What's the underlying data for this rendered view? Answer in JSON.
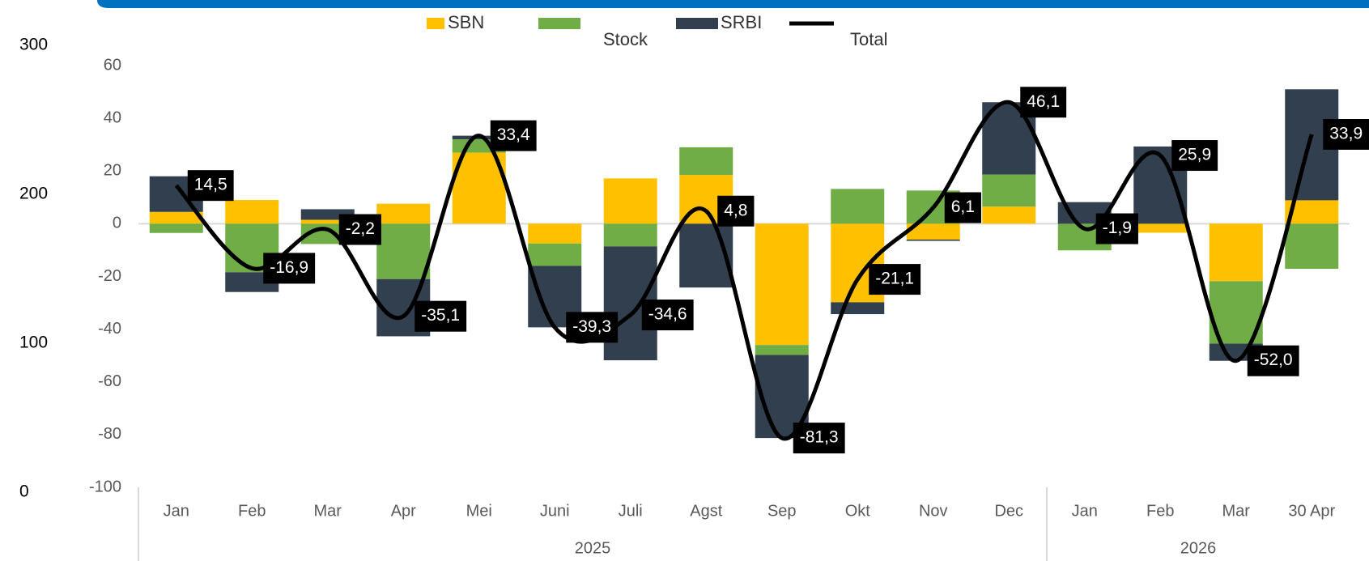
{
  "chart_data": {
    "type": "bar",
    "categories": [
      "Jan",
      "Feb",
      "Mar",
      "Apr",
      "Mei",
      "Juni",
      "Juli",
      "Agst",
      "Sep",
      "Okt",
      "Nov",
      "Dec",
      "Jan",
      "Feb",
      "Mar",
      "30 Apr"
    ],
    "groups": [
      {
        "name": "2025",
        "count": 12
      },
      {
        "name": "2026",
        "count": 4
      }
    ],
    "series": [
      {
        "name": "SBN",
        "type": "bar",
        "color": "#FFC000",
        "values": [
          4.5,
          9,
          1.5,
          7.6,
          27,
          -7.5,
          17.2,
          18.5,
          -46,
          -29.8,
          -6,
          6.5,
          0,
          -3.4,
          -21.8,
          8.9
        ]
      },
      {
        "name": "Stock",
        "type": "bar",
        "color": "#70AD47",
        "values": [
          -3.5,
          -18.4,
          -7.7,
          -21,
          5,
          -8.5,
          -8.6,
          10.5,
          -3.8,
          13.2,
          12.6,
          12.2,
          -10.1,
          0,
          -23.7,
          -17.1
        ]
      },
      {
        "name": "SRBI",
        "type": "bar",
        "color": "#323F4F",
        "values": [
          13.5,
          -7.5,
          4,
          -21.7,
          1.4,
          -23.3,
          -43.2,
          -24.2,
          -31.5,
          -4.5,
          -0.5,
          27.4,
          8.2,
          29.3,
          -6.5,
          42.1
        ]
      },
      {
        "name": "Total",
        "type": "line",
        "color": "#000000",
        "values": [
          14.5,
          -16.9,
          -2.2,
          -35.1,
          33.4,
          -39.3,
          -34.6,
          4.8,
          -81.3,
          -21.1,
          6.1,
          46.1,
          -1.9,
          25.9,
          -52.0,
          33.9
        ],
        "value_labels": [
          "14,5",
          "-16,9",
          "-2,2",
          "-35,1",
          "33,4",
          "-39,3",
          "-34,6",
          "4,8",
          "-81,3",
          "-21,1",
          "6,1",
          "46,1",
          "-1,9",
          "25,9",
          "-52,0",
          "33,9"
        ]
      }
    ],
    "ylim": [
      -100,
      60
    ],
    "yticks": [
      -100,
      -80,
      -60,
      -40,
      -20,
      0,
      20,
      40,
      60
    ],
    "y2lim": [
      0,
      300
    ],
    "y2ticks": [
      0,
      100,
      200,
      300
    ],
    "grid": false
  }
}
